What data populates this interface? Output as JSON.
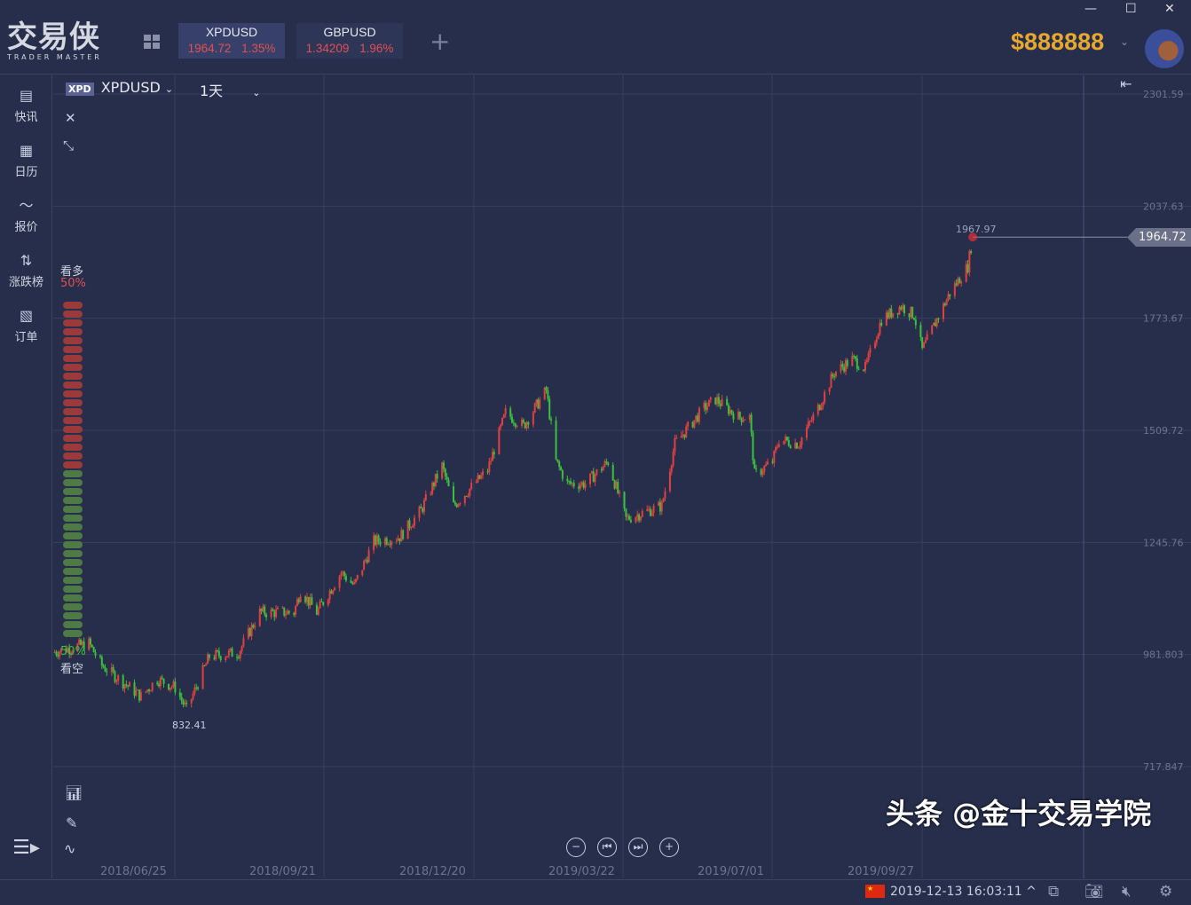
{
  "app": {
    "logo_text": "交易侠",
    "logo_subtitle": "TRADER MASTER",
    "balance": "$888888",
    "window_controls": [
      "minimize",
      "maximize",
      "close"
    ]
  },
  "tabs": [
    {
      "symbol": "XPDUSD",
      "price": "1964.72",
      "change": "1.35%",
      "active": true
    },
    {
      "symbol": "GBPUSD",
      "price": "1.34209",
      "change": "1.96%",
      "active": false
    }
  ],
  "sidebar": {
    "items": [
      {
        "label": "快讯",
        "icon": "news-icon"
      },
      {
        "label": "日历",
        "icon": "calendar-icon"
      },
      {
        "label": "报价",
        "icon": "quote-chart-icon"
      },
      {
        "label": "涨跌榜",
        "icon": "updown-icon"
      },
      {
        "label": "订单",
        "icon": "order-icon"
      }
    ]
  },
  "chart_toolbar": {
    "badge": "XPD",
    "symbol": "XPDUSD",
    "period": "1天"
  },
  "sentiment": {
    "bull_label": "看多",
    "bull_pct": "50%",
    "bear_label": "看空",
    "bear_pct": "50%",
    "bull_color": "#9a3a3a",
    "bear_color": "#4e7a45"
  },
  "chart_data": {
    "type": "candlestick",
    "up_color": "#e04040",
    "down_color": "#3cbf3c",
    "y_ticks": [
      "2301.59",
      "2037.63",
      "1773.67",
      "1509.72",
      "1245.76",
      "981.803",
      "717.847"
    ],
    "ylim": [
      717.847,
      2301.59
    ],
    "x_ticks": [
      "2018/06/25",
      "2018/09/21",
      "2018/12/20",
      "2019/03/22",
      "2019/07/01",
      "2019/09/27"
    ],
    "high_label": "1967.97",
    "low_label": "832.41",
    "last_price": "1964.72",
    "close_path": [
      [
        "2018-05-27",
        987
      ],
      [
        "2018-06-18",
        1008
      ],
      [
        "2018-06-26",
        956
      ],
      [
        "2018-07-20",
        883
      ],
      [
        "2018-07-30",
        924
      ],
      [
        "2018-08-10",
        904
      ],
      [
        "2018-08-17",
        852
      ],
      [
        "2018-08-31",
        977
      ],
      [
        "2018-09-18",
        987
      ],
      [
        "2018-10-01",
        1081
      ],
      [
        "2018-10-22",
        1081
      ],
      [
        "2018-10-26",
        1133
      ],
      [
        "2018-11-05",
        1081
      ],
      [
        "2018-11-20",
        1175
      ],
      [
        "2018-11-28",
        1144
      ],
      [
        "2018-12-10",
        1248
      ],
      [
        "2018-12-26",
        1259
      ],
      [
        "2019-01-08",
        1321
      ],
      [
        "2019-01-21",
        1426
      ],
      [
        "2019-01-28",
        1332
      ],
      [
        "2019-02-18",
        1416
      ],
      [
        "2019-03-01",
        1551
      ],
      [
        "2019-03-12",
        1520
      ],
      [
        "2019-03-26",
        1604
      ],
      [
        "2019-04-01",
        1436
      ],
      [
        "2019-04-08",
        1384
      ],
      [
        "2019-04-19",
        1384
      ],
      [
        "2019-05-03",
        1436
      ],
      [
        "2019-05-14",
        1301
      ],
      [
        "2019-06-05",
        1332
      ],
      [
        "2019-06-13",
        1478
      ],
      [
        "2019-07-01",
        1562
      ],
      [
        "2019-07-08",
        1583
      ],
      [
        "2019-07-22",
        1541
      ],
      [
        "2019-07-29",
        1541
      ],
      [
        "2019-08-01",
        1405
      ],
      [
        "2019-08-12",
        1436
      ],
      [
        "2019-08-16",
        1488
      ],
      [
        "2019-08-28",
        1478
      ],
      [
        "2019-09-09",
        1562
      ],
      [
        "2019-09-19",
        1646
      ],
      [
        "2019-09-30",
        1677
      ],
      [
        "2019-10-08",
        1656
      ],
      [
        "2019-10-18",
        1771
      ],
      [
        "2019-10-30",
        1802
      ],
      [
        "2019-11-07",
        1781
      ],
      [
        "2019-11-12",
        1698
      ],
      [
        "2019-11-21",
        1771
      ],
      [
        "2019-11-29",
        1833
      ],
      [
        "2019-12-10",
        1896
      ],
      [
        "2019-12-13",
        1964.72
      ]
    ]
  },
  "status": {
    "datetime": "2019-12-13 16:03:11",
    "watermark": "头条 @金十交易学院"
  }
}
